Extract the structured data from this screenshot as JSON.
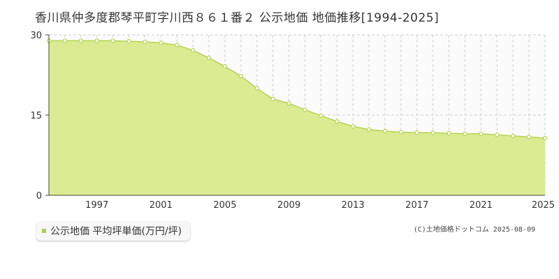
{
  "title": "香川県仲多度郡琴平町字川西８６１番２ 公示地価 地価推移[1994-2025]",
  "legend": {
    "label": "公示地価 平均坪単価(万円/坪)"
  },
  "credit": "(C)土地価格ドットコム 2025-08-09",
  "colors": {
    "fill": "#dbeb92",
    "line": "#b4d450",
    "marker_fill": "#ffffff",
    "marker_stroke": "#b4d450",
    "legend_swatch": "#a8d14b"
  },
  "chart_data": {
    "type": "area",
    "x": [
      1994,
      1995,
      1996,
      1997,
      1998,
      1999,
      2000,
      2001,
      2002,
      2003,
      2004,
      2005,
      2006,
      2007,
      2008,
      2009,
      2010,
      2011,
      2012,
      2013,
      2014,
      2015,
      2016,
      2017,
      2018,
      2019,
      2020,
      2021,
      2022,
      2023,
      2024,
      2025
    ],
    "series": [
      {
        "name": "公示地価 平均坪単価(万円/坪)",
        "values": [
          28.9,
          28.9,
          28.9,
          28.9,
          28.9,
          28.8,
          28.7,
          28.5,
          28.1,
          27.1,
          25.7,
          24.1,
          22.3,
          20.0,
          18.0,
          17.2,
          16.0,
          14.9,
          13.8,
          12.9,
          12.3,
          12.0,
          11.8,
          11.7,
          11.7,
          11.6,
          11.5,
          11.5,
          11.3,
          11.1,
          10.9,
          10.7
        ]
      }
    ],
    "ylim": [
      0,
      30
    ],
    "y_ticks": [
      "0",
      "15",
      "30"
    ],
    "x_tick_labels": [
      "1997",
      "2001",
      "2005",
      "2009",
      "2013",
      "2017",
      "2021",
      "2025"
    ],
    "xlabel": "",
    "ylabel": "",
    "grid": true
  }
}
